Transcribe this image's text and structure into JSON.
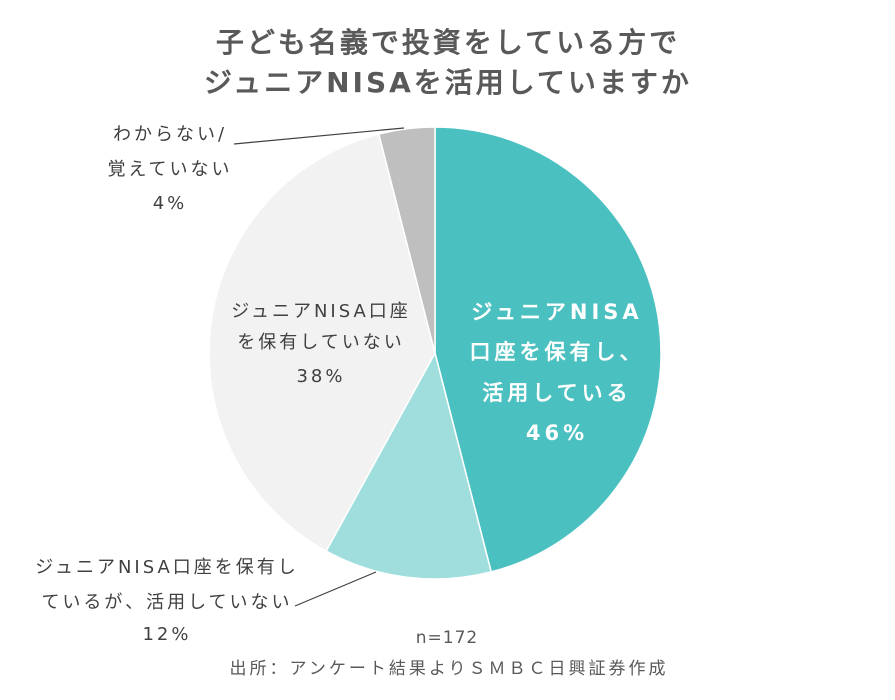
{
  "chart_data": {
    "type": "pie",
    "title": [
      "子ども名義で投資をしている方で",
      "ジュニアNISAを活用していますか"
    ],
    "slices": [
      {
        "label_lines": [
          "ジュニアNISA",
          "口座を保有し、",
          "活用している"
        ],
        "value": 46,
        "value_label": "46%",
        "color": "#4BC0C0",
        "label_color": "#FFFFFF"
      },
      {
        "label_lines": [
          "ジュニアNISA口座を保有し",
          "ているが、活用していない"
        ],
        "value": 12,
        "value_label": "12%",
        "color": "#A0DEDE",
        "label_color": "#404040"
      },
      {
        "label_lines": [
          "ジュニアNISA口座",
          "を保有していない"
        ],
        "value": 38,
        "value_label": "38%",
        "color": "#F2F2F2",
        "label_color": "#404040"
      },
      {
        "label_lines": [
          "わからない/",
          "覚えていない"
        ],
        "value": 4,
        "value_label": "4%",
        "color": "#BFBFBF",
        "label_color": "#404040"
      }
    ]
  },
  "footer": {
    "sample_size": "n=172",
    "source": "出所：アンケート結果よりＳＭＢＣ日興証券作成"
  }
}
